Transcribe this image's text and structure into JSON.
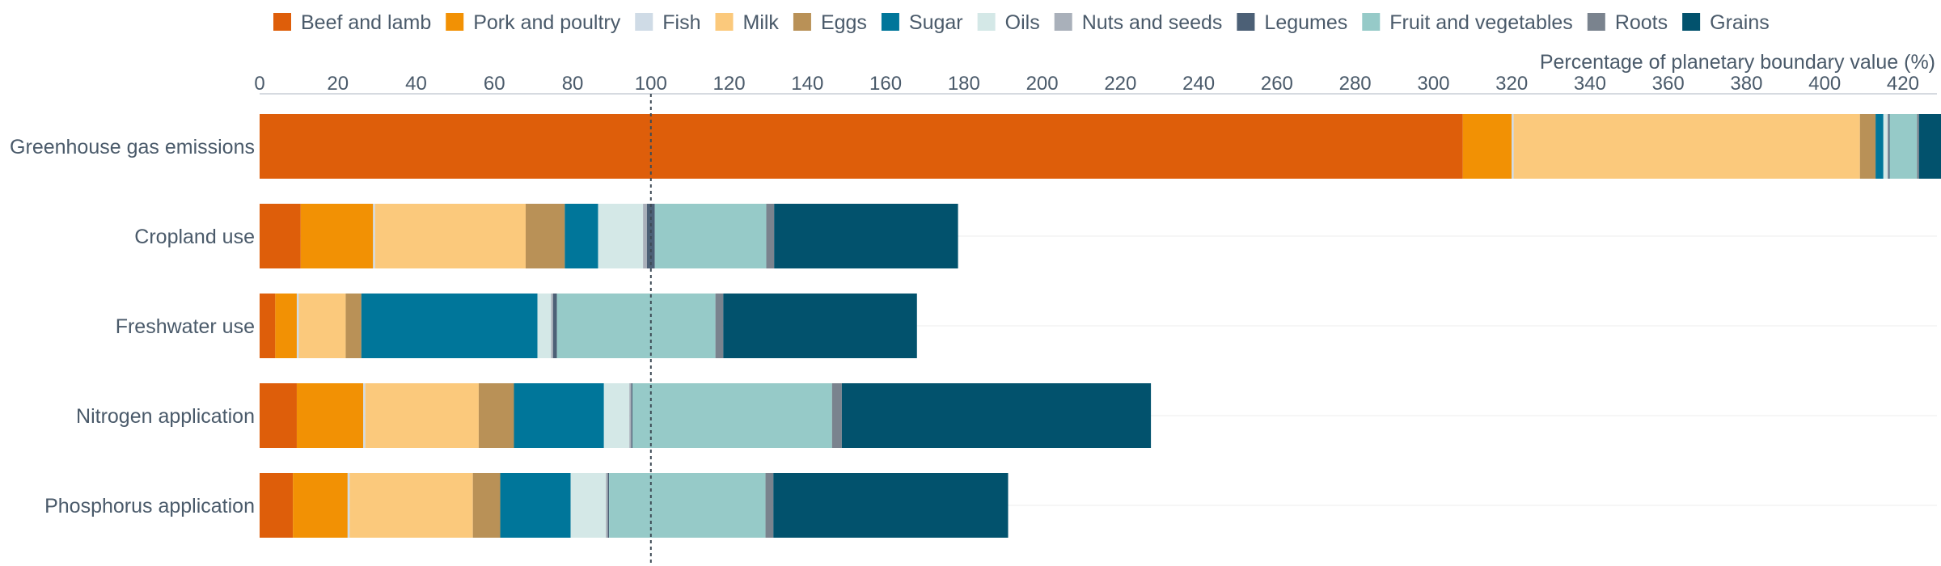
{
  "chart_data": {
    "type": "bar",
    "orientation": "horizontal",
    "stacked": true,
    "xlabel": "Percentage of planetary boundary value (%)",
    "xlim": [
      0,
      430
    ],
    "x_ticks": [
      0,
      20,
      40,
      60,
      80,
      100,
      120,
      140,
      160,
      180,
      200,
      220,
      240,
      260,
      280,
      300,
      320,
      340,
      360,
      380,
      400,
      420
    ],
    "reference_line": 100,
    "legend_position": "top",
    "categories": [
      "Greenhouse gas emissions",
      "Cropland use",
      "Freshwater use",
      "Nitrogen application",
      "Phosphorus application"
    ],
    "series": [
      {
        "name": "Beef and lamb",
        "color": "#de5e0a",
        "values": [
          307.5,
          10.5,
          4,
          9.5,
          8.5
        ]
      },
      {
        "name": "Pork and poultry",
        "color": "#f29104",
        "values": [
          12.5,
          18.5,
          5.5,
          17,
          14
        ]
      },
      {
        "name": "Fish",
        "color": "#cfdbe6",
        "values": [
          0.5,
          0.5,
          0.5,
          0.5,
          0.5
        ]
      },
      {
        "name": "Milk",
        "color": "#fbc97c",
        "values": [
          88.5,
          38.5,
          12,
          29,
          31.5
        ]
      },
      {
        "name": "Eggs",
        "color": "#b99157",
        "values": [
          4,
          10,
          4,
          9,
          7
        ]
      },
      {
        "name": "Sugar",
        "color": "#00769a",
        "values": [
          2,
          8.5,
          45,
          23,
          18
        ]
      },
      {
        "name": "Oils",
        "color": "#d4e8e7",
        "values": [
          1,
          11.5,
          3.5,
          6.5,
          9
        ]
      },
      {
        "name": "Nuts and seeds",
        "color": "#a9b0ba",
        "values": [
          0.3,
          1,
          0.5,
          0.5,
          0.5
        ]
      },
      {
        "name": "Legumes",
        "color": "#4c6076",
        "values": [
          0.3,
          2,
          1,
          0.3,
          0.3
        ]
      },
      {
        "name": "Fruit and vegetables",
        "color": "#96cac8",
        "values": [
          7,
          28.5,
          40.5,
          51,
          40
        ]
      },
      {
        "name": "Roots",
        "color": "#7a838e",
        "values": [
          0.5,
          2,
          2,
          2.5,
          2
        ]
      },
      {
        "name": "Grains",
        "color": "#02526d",
        "values": [
          7,
          47,
          49.5,
          79,
          60
        ]
      }
    ]
  }
}
